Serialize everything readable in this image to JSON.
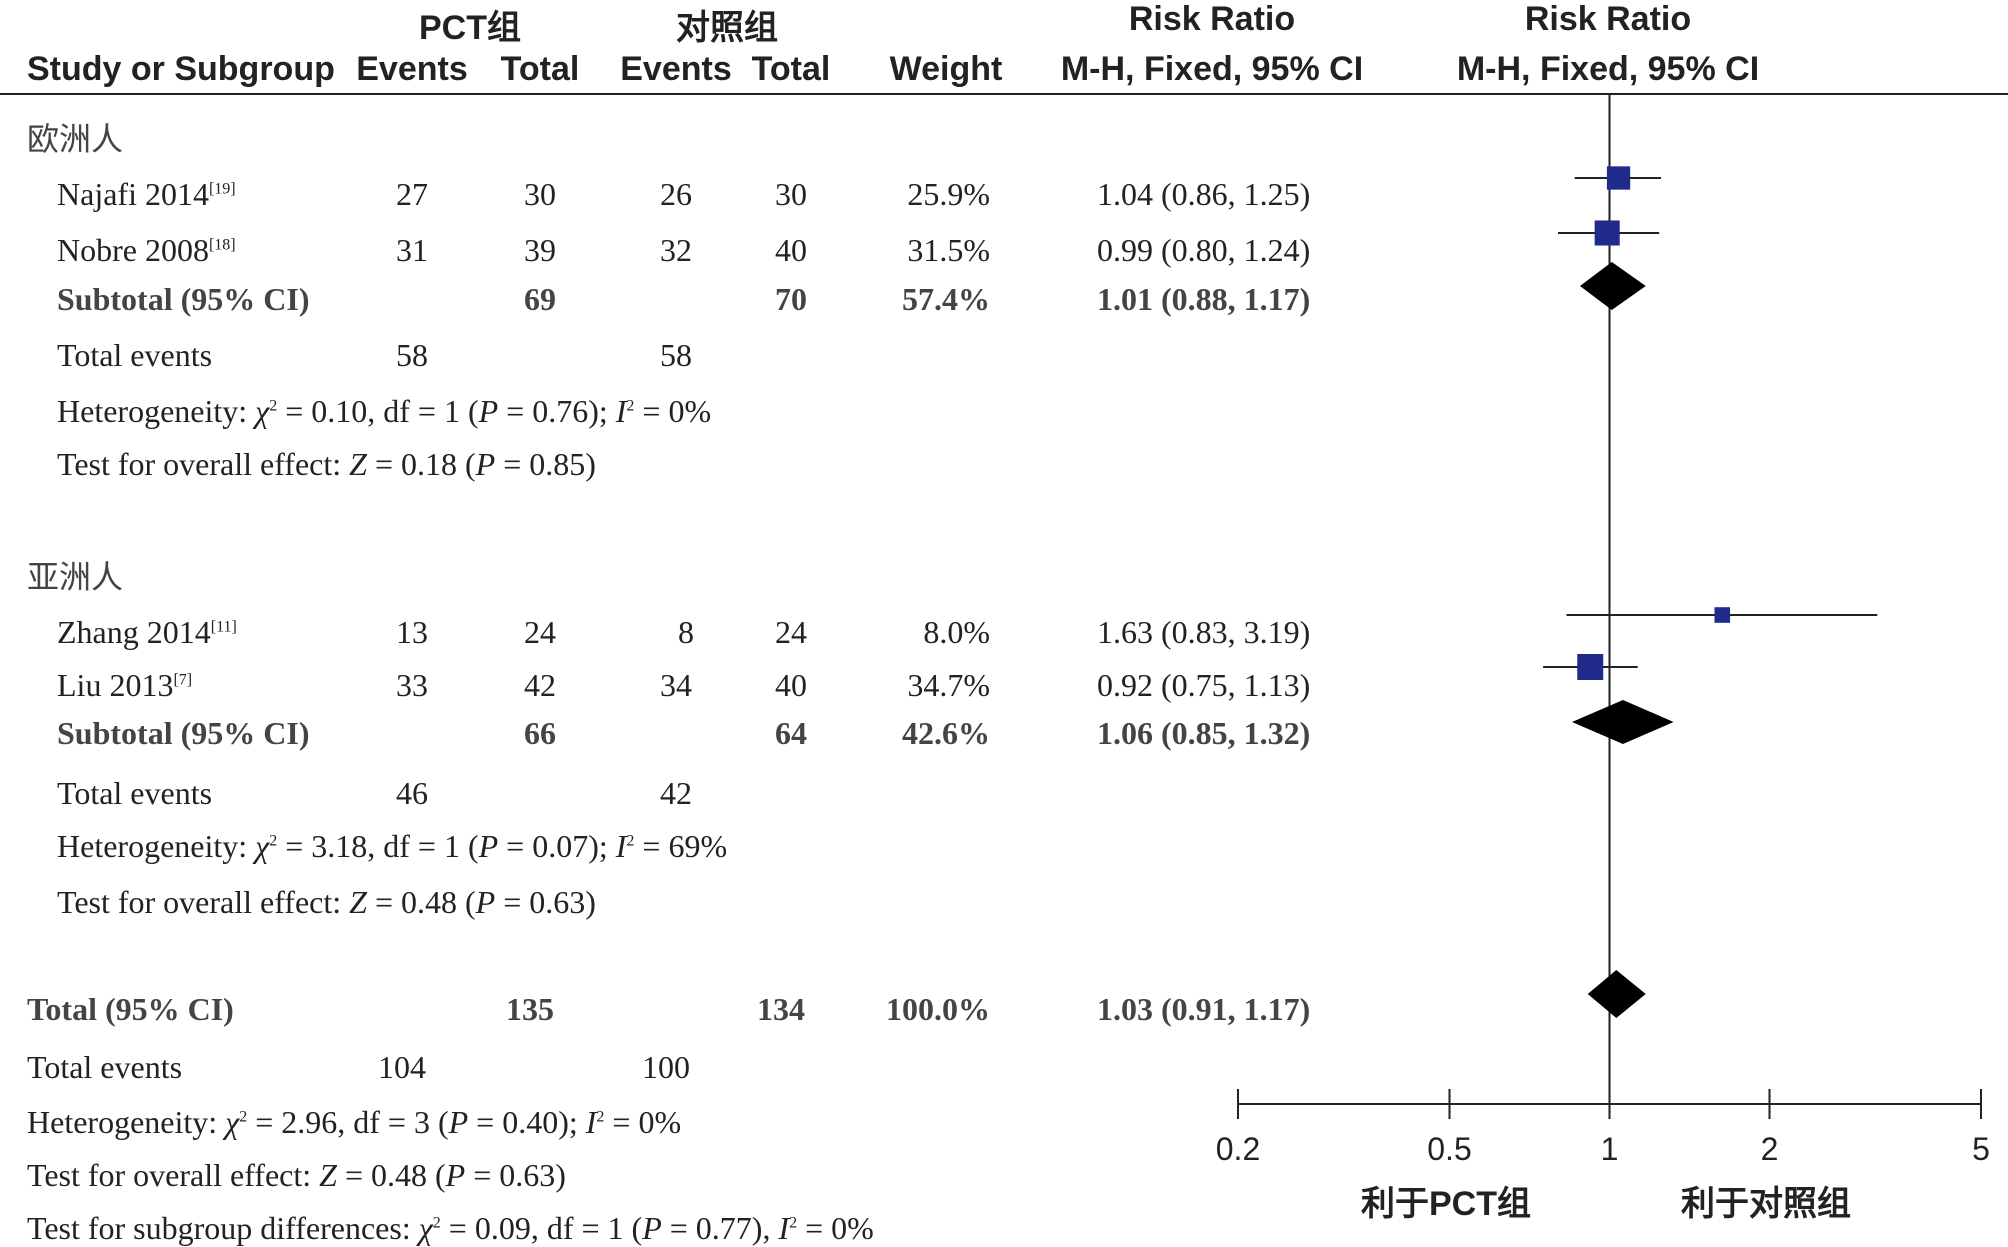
{
  "header": {
    "pct_group": "PCT组",
    "control_group": "对照组",
    "rr_title": "Risk Ratio",
    "rr_title_plot": "Risk Ratio",
    "col_study": "Study or Subgroup",
    "col_events1": "Events",
    "col_total1": "Total",
    "col_events2": "Events",
    "col_total2": "Total",
    "col_weight": "Weight",
    "col_mh": "M-H, Fixed, 95% CI",
    "col_mh_plot": "M-H, Fixed, 95% CI"
  },
  "groups": [
    {
      "name": "欧洲人",
      "studies": [
        {
          "name": "Najafi 2014",
          "ref": "[19]",
          "e1": "27",
          "t1": "30",
          "e2": "26",
          "t2": "30",
          "weight": "25.9%",
          "ci": "1.04 (0.86, 1.25)"
        },
        {
          "name": "Nobre 2008",
          "ref": "[18]",
          "e1": "31",
          "t1": "39",
          "e2": "32",
          "t2": "40",
          "weight": "31.5%",
          "ci": "0.99 (0.80, 1.24)"
        }
      ],
      "subtotal": {
        "label": "Subtotal (95% CI)",
        "t1": "69",
        "t2": "70",
        "weight": "57.4%",
        "ci": "1.01 (0.88, 1.17)"
      },
      "events": {
        "label": "Total events",
        "e1": "58",
        "e2": "58"
      },
      "heterogeneity": {
        "prefix": "Heterogeneity: ",
        "chi": "χ",
        "text1": " = 0.10, df = 1 (",
        "p": "P",
        "text2": " = 0.76); ",
        "i": "I",
        "text3": " = 0%"
      },
      "overall": {
        "prefix": "Test for overall effect: ",
        "z": "Z",
        "text1": " = 0.18 (",
        "p": "P",
        "text2": " = 0.85)"
      }
    },
    {
      "name": "亚洲人",
      "studies": [
        {
          "name": "Zhang 2014",
          "ref": "[11]",
          "e1": "13",
          "t1": "24",
          "e2": "8",
          "t2": "24",
          "weight": "8.0%",
          "ci": "1.63 (0.83, 3.19)"
        },
        {
          "name": "Liu 2013",
          "ref": "[7]",
          "e1": "33",
          "t1": "42",
          "e2": "34",
          "t2": "40",
          "weight": "34.7%",
          "ci": "0.92 (0.75, 1.13)"
        }
      ],
      "subtotal": {
        "label": "Subtotal (95% CI)",
        "t1": "66",
        "t2": "64",
        "weight": "42.6%",
        "ci": "1.06 (0.85, 1.32)"
      },
      "events": {
        "label": "Total events",
        "e1": "46",
        "e2": "42"
      },
      "heterogeneity": {
        "prefix": "Heterogeneity: ",
        "chi": "χ",
        "text1": " = 3.18, df = 1 (",
        "p": "P",
        "text2": " = 0.07); ",
        "i": "I",
        "text3": " = 69%"
      },
      "overall": {
        "prefix": "Test for overall effect: ",
        "z": "Z",
        "text1": " = 0.48 (",
        "p": "P",
        "text2": " = 0.63)"
      }
    }
  ],
  "total": {
    "label": "Total (95% CI)",
    "t1": "135",
    "t2": "134",
    "weight": "100.0%",
    "ci": "1.03 (0.91, 1.17)",
    "events": {
      "label": "Total events",
      "e1": "104",
      "e2": "100"
    },
    "heterogeneity": {
      "prefix": "Heterogeneity: ",
      "chi": "χ",
      "text1": " = 2.96, df = 3 (",
      "p": "P",
      "text2": " = 0.40); ",
      "i": "I",
      "text3": " = 0%"
    },
    "overall": {
      "prefix": "Test for overall effect: ",
      "z": "Z",
      "text1": " = 0.48 (",
      "p": "P",
      "text2": " = 0.63)"
    },
    "subgroup_diff": {
      "prefix": "Test for subgroup differences: ",
      "chi": "χ",
      "text1": " = 0.09, df = 1 (",
      "p": "P",
      "text2": " = 0.77), ",
      "i": "I",
      "text3": " = 0%"
    }
  },
  "sup2": "2",
  "axis": {
    "left_label": "利于PCT组",
    "right_label": "利于对照组"
  },
  "colors": {
    "ink": "#222222",
    "square": "#1f2a8a",
    "diamond": "#000000"
  },
  "chart_data": {
    "type": "forest",
    "xscale": "log",
    "xlim": [
      0.2,
      5
    ],
    "ticks": [
      0.2,
      0.5,
      1,
      2,
      5
    ],
    "tick_labels": [
      "0.2",
      "0.5",
      "1",
      "2",
      "5"
    ],
    "null_line": 1,
    "studies": [
      {
        "name": "Najafi 2014",
        "rr": 1.04,
        "lo": 0.86,
        "hi": 1.25,
        "weight": 25.9
      },
      {
        "name": "Nobre 2008",
        "rr": 0.99,
        "lo": 0.8,
        "hi": 1.24,
        "weight": 31.5
      },
      {
        "name": "Zhang 2014",
        "rr": 1.63,
        "lo": 0.83,
        "hi": 3.19,
        "weight": 8.0
      },
      {
        "name": "Liu 2013",
        "rr": 0.92,
        "lo": 0.75,
        "hi": 1.13,
        "weight": 34.7
      }
    ],
    "diamonds": [
      {
        "name": "Subtotal 欧洲人",
        "rr": 1.01,
        "lo": 0.88,
        "hi": 1.17
      },
      {
        "name": "Subtotal 亚洲人",
        "rr": 1.06,
        "lo": 0.85,
        "hi": 1.32
      },
      {
        "name": "Total",
        "rr": 1.03,
        "lo": 0.91,
        "hi": 1.17
      }
    ]
  }
}
